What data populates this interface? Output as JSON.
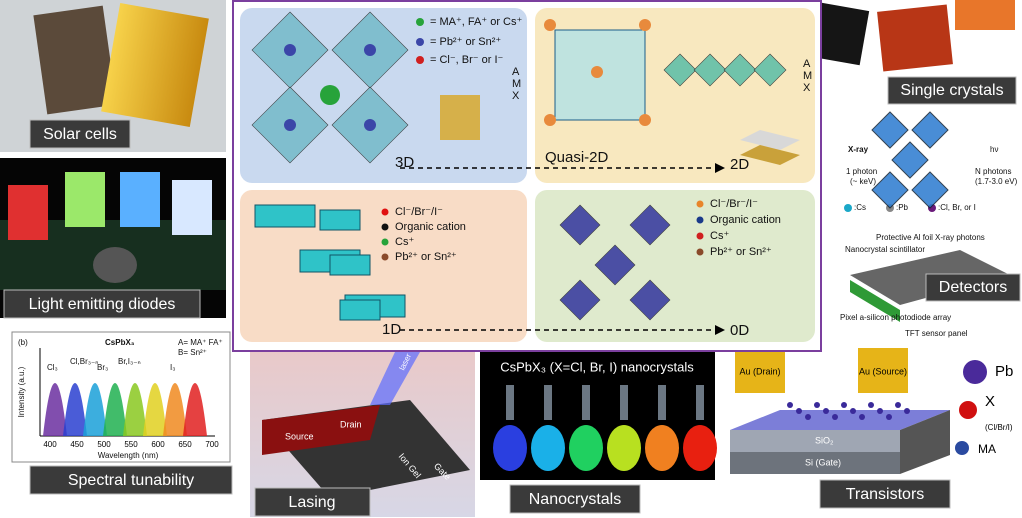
{
  "captions": {
    "solar": "Solar cells",
    "led": "Light emitting diodes",
    "spectral": "Spectral tunability",
    "lasing": "Lasing",
    "nanocrystals": "Nanocrystals",
    "transistors": "Transistors",
    "detectors": "Detectors",
    "single_crystals": "Single crystals"
  },
  "panels": {
    "three_d": {
      "label": "3D",
      "legend": [
        "= MA⁺, FA⁺ or Cs⁺",
        "= Pb²⁺ or Sn²⁺",
        "= Cl⁻, Br⁻ or I⁻"
      ],
      "amx": [
        "A",
        "M",
        "X"
      ]
    },
    "quasi_2d": {
      "label": "Quasi-2D",
      "label_2d": "2D",
      "amx": [
        "A",
        "M",
        "X"
      ]
    },
    "one_d": {
      "label": "1D",
      "legend": [
        "Cl⁻/Br⁻/I⁻",
        "Organic cation",
        "Cs⁺",
        "Pb²⁺ or Sn²⁺"
      ]
    },
    "zero_d": {
      "label": "0D",
      "legend": [
        "Cl⁻/Br⁻/I⁻",
        "Organic cation",
        "Cs⁺",
        "Pb²⁺ or Sn²⁺"
      ]
    }
  },
  "spectral": {
    "panel": "(b)",
    "title": "CsPbX₃",
    "formula": [
      "A= MA⁺ FA⁺",
      "B= Sn²⁺"
    ],
    "halides": [
      "Cl₃",
      "Cl,Br₃₋ₙ",
      "Br₃",
      "Br,I₃₋ₙ",
      "I₃"
    ],
    "y_label": "Intensity (a.u.)",
    "x_label": "Wavelength (nm)",
    "ticks": [
      "400",
      "450",
      "500",
      "550",
      "600",
      "650",
      "700"
    ]
  },
  "lasing": {
    "parts": [
      "Source",
      "Drain",
      "Ion Gel",
      "Gate",
      "laser"
    ]
  },
  "nanocrystals": {
    "title": "CsPbX₃ (X=Cl, Br, I) nanocrystals"
  },
  "xray": {
    "labels": [
      "X-ray",
      "1 photon",
      "(~ keV)",
      "hν",
      "N photons",
      "(1.7-3.0 eV)"
    ],
    "legend": [
      ":Cs",
      ":Pb",
      ":Cl, Br, or I"
    ]
  },
  "detector": {
    "labels": [
      "Protective Al foil",
      "Nanocrystal scintillator",
      "X-ray photons",
      "Pixel a-silicon photodiode array",
      "TFT sensor panel"
    ]
  },
  "transistor": {
    "labels": [
      "Au (Drain)",
      "Au (Source)",
      "SiO₂",
      "Si (Gate)"
    ],
    "legend": [
      "Pb",
      "X",
      "(Cl/Br/I)",
      "MA"
    ]
  }
}
